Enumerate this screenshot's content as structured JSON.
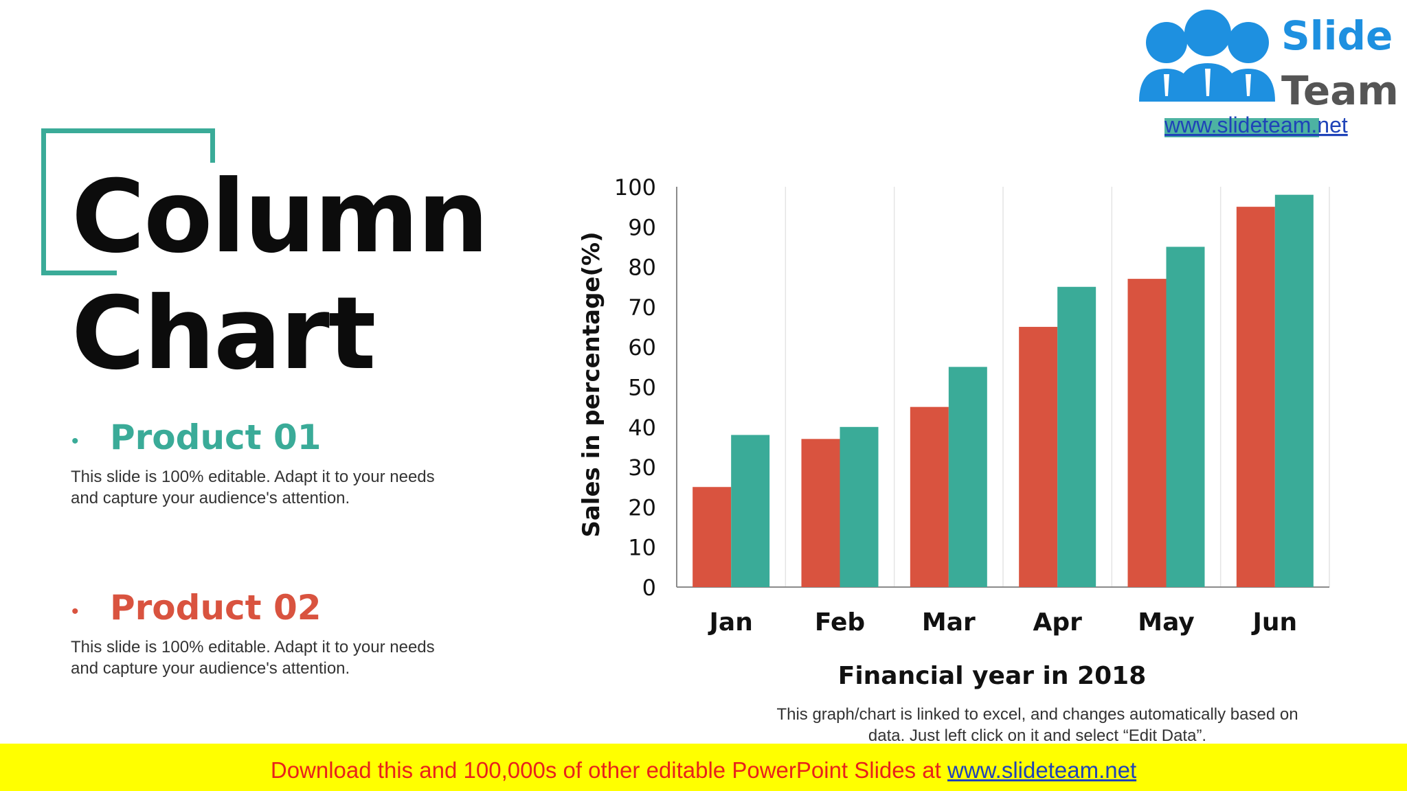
{
  "slide": {
    "title_line1": "Column",
    "title_line2": "Chart",
    "products": [
      {
        "bullet": "•",
        "heading": "Product 01",
        "color": "#3aab98",
        "description_line1": "This slide is 100% editable. Adapt it to your needs",
        "description_line2": "and capture your audience's attention."
      },
      {
        "bullet": "•",
        "heading": "Product 02",
        "color": "#d9533f",
        "description_line1": "This slide is 100% editable. Adapt it to your needs",
        "description_line2": "and capture your audience's attention."
      }
    ],
    "chart_note_line1": "This graph/chart is linked to excel, and changes automatically based on",
    "chart_note_line2": "data. Just left click on it and select “Edit Data”."
  },
  "logo": {
    "word1": "Slide",
    "word2": "Team",
    "url": "www.slideteam.net",
    "icon": "people-icon"
  },
  "footer": {
    "text": "Download this and 100,000s of other editable PowerPoint Slides at ",
    "link": "www.slideteam.net"
  },
  "colors": {
    "teal": "#3aab98",
    "red": "#d9533f",
    "footer_bg": "#ffff00"
  },
  "chart_data": {
    "type": "bar",
    "categories": [
      "Jan",
      "Feb",
      "Mar",
      "Apr",
      "May",
      "Jun"
    ],
    "series": [
      {
        "color": "#d9533f",
        "values": [
          25,
          37,
          45,
          65,
          77,
          95
        ]
      },
      {
        "color": "#3aab98",
        "values": [
          38,
          40,
          55,
          75,
          85,
          98
        ]
      }
    ],
    "xlabel": "Financial year in 2018",
    "ylabel": "Sales in percentage(%)",
    "ylim": [
      0,
      100
    ],
    "yticks": [
      0,
      10,
      20,
      30,
      40,
      50,
      60,
      70,
      80,
      90,
      100
    ],
    "grid": "vertical category separators",
    "legend": "none"
  }
}
